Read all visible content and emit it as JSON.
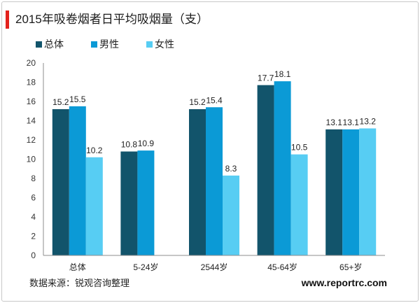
{
  "theme": {
    "accent": "#e3211c",
    "axis_color": "#8c8c8c"
  },
  "chart_data": {
    "type": "bar",
    "title": "2015年吸卷烟者日平均吸烟量（支）",
    "categories": [
      "总体",
      "5-24岁",
      "2544岁",
      "45-64岁",
      "65+岁"
    ],
    "series": [
      {
        "name": "总体",
        "color": "#12546b",
        "values": [
          15.2,
          10.8,
          15.2,
          17.7,
          13.1
        ]
      },
      {
        "name": "男性",
        "color": "#0b9ad6",
        "values": [
          15.5,
          10.9,
          15.4,
          18.1,
          13.1
        ]
      },
      {
        "name": "女性",
        "color": "#57cdf3",
        "values": [
          10.2,
          null,
          8.3,
          10.5,
          13.2
        ]
      }
    ],
    "ylim": [
      0,
      20
    ],
    "yticks": [
      0,
      2,
      4,
      6,
      8,
      10,
      12,
      14,
      16,
      18,
      20
    ],
    "grid": false,
    "legend_position": "top-left"
  },
  "footer": {
    "source": "数据来源：锐观咨询整理",
    "website": "www.reportrc.com"
  }
}
